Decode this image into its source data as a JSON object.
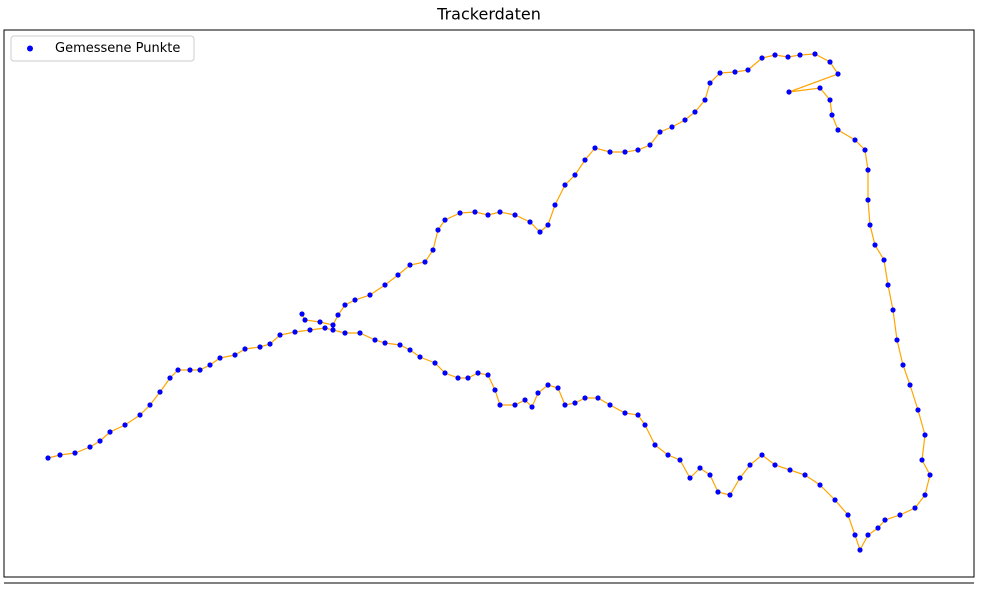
{
  "chart_data": {
    "type": "scatter",
    "title": "Trackerdaten",
    "x": [
      48,
      60,
      75,
      90,
      100,
      110,
      125,
      140,
      150,
      160,
      170,
      178,
      190,
      200,
      210,
      220,
      235,
      245,
      260,
      270,
      280,
      295,
      310,
      325,
      333,
      345,
      360,
      375,
      385,
      400,
      410,
      420,
      435,
      445,
      458,
      468,
      478,
      488,
      495,
      500,
      515,
      525,
      532,
      538,
      548,
      558,
      565,
      575,
      585,
      598,
      610,
      625,
      638,
      645,
      655,
      668,
      680,
      690,
      700,
      710,
      718,
      730,
      740,
      750,
      762,
      775,
      790,
      805,
      820,
      835,
      848,
      855,
      860,
      868,
      878,
      885,
      900,
      915,
      925,
      930,
      922,
      925,
      918,
      910,
      903,
      897,
      893,
      888,
      884,
      875,
      870,
      868,
      868,
      865,
      855,
      838,
      832,
      830,
      820,
      789,
      838,
      830,
      815,
      800,
      788,
      775,
      762,
      748,
      735,
      720,
      710,
      705,
      695,
      685,
      672,
      660,
      650,
      638,
      625,
      610,
      595,
      585,
      575,
      565,
      555,
      548,
      540,
      530,
      515,
      500,
      488,
      475,
      460,
      445,
      438,
      433,
      425,
      410,
      398,
      385,
      370,
      355,
      345,
      338,
      333,
      320,
      305,
      302
    ],
    "series": [
      {
        "name": "Gemessene Punkte",
        "color": "#0000ff",
        "line_color": "#ffa500",
        "values": [
          119,
          122,
          124,
          130,
          136,
          145,
          152,
          162,
          172,
          185,
          199,
          207,
          207,
          207,
          212,
          219,
          222,
          228,
          230,
          233,
          242,
          245,
          247,
          249,
          247,
          244,
          244,
          237,
          234,
          232,
          227,
          220,
          214,
          204,
          199,
          199,
          204,
          202,
          187,
          172,
          172,
          177,
          170,
          184,
          192,
          189,
          172,
          174,
          179,
          179,
          172,
          164,
          162,
          152,
          132,
          122,
          117,
          99,
          109,
          102,
          85,
          82,
          99,
          112,
          122,
          112,
          107,
          102,
          92,
          77,
          62,
          42,
          27,
          42,
          49,
          57,
          62,
          69,
          82,
          102,
          117,
          142,
          167,
          192,
          212,
          237,
          267,
          292,
          317,
          332,
          352,
          377,
          407,
          427,
          437,
          447,
          462,
          477,
          489,
          485,
          503,
          515,
          523,
          522,
          520,
          522,
          519,
          507,
          505,
          504,
          494,
          477,
          465,
          457,
          450,
          445,
          432,
          427,
          425,
          425,
          429,
          417,
          402,
          392,
          372,
          352,
          345,
          355,
          362,
          365,
          362,
          365,
          364,
          357,
          347,
          327,
          315,
          312,
          302,
          292,
          282,
          277,
          272,
          262,
          252,
          255,
          257,
          263
        ]
      }
    ],
    "xlim": [
      4,
      974
    ],
    "ylim": [
      0,
      547
    ],
    "legend": "upper left"
  }
}
